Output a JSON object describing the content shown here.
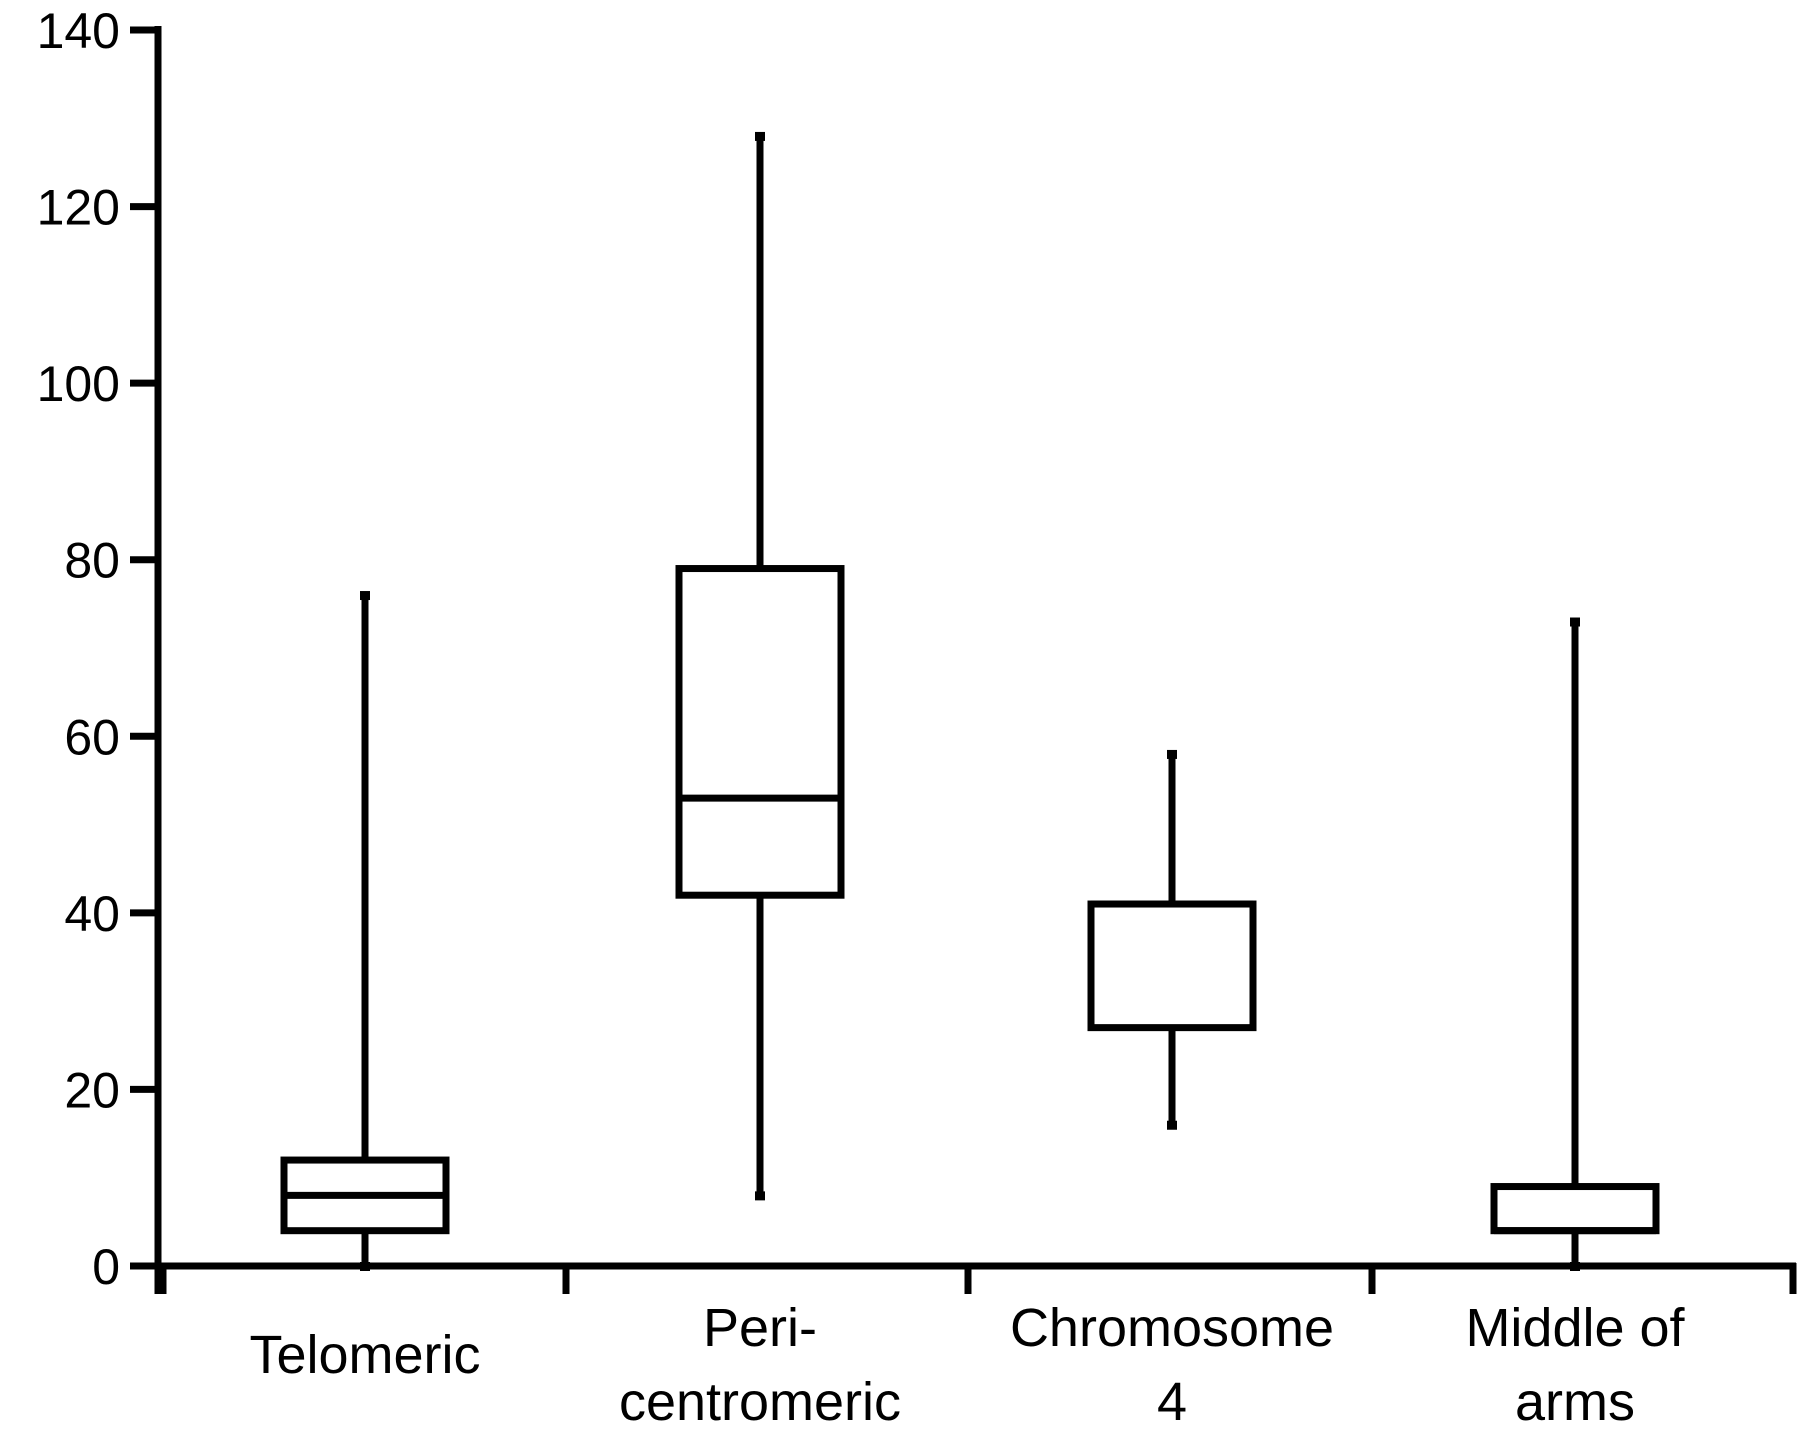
{
  "chart_data": {
    "type": "box",
    "title": "",
    "xlabel": "",
    "ylabel": "",
    "ylim": [
      0,
      140
    ],
    "y_ticks": [
      0,
      20,
      40,
      60,
      80,
      100,
      120,
      140
    ],
    "y_tick_labels": [
      "0",
      "20",
      "40",
      "60",
      "80",
      "100",
      "120",
      "140"
    ],
    "grid": false,
    "legend": "none",
    "categories": [
      {
        "label_lines": [
          "Telomeric"
        ],
        "whisker_low": 0,
        "q1": 4,
        "median": 8,
        "q3": 12,
        "whisker_high": 76
      },
      {
        "label_lines": [
          "Peri-",
          "centromeric"
        ],
        "whisker_low": 8,
        "q1": 42,
        "median": 53,
        "q3": 79,
        "whisker_high": 128
      },
      {
        "label_lines": [
          "Chromosome",
          "4"
        ],
        "whisker_low": 16,
        "q1": 27,
        "median": 41,
        "q3": 41,
        "whisker_high": 58
      },
      {
        "label_lines": [
          "Middle of",
          "arms"
        ],
        "whisker_low": 0,
        "q1": 4,
        "median": 4,
        "q3": 9,
        "whisker_high": 73
      }
    ],
    "colors": {
      "line": "#000000",
      "box_fill": "#ffffff"
    }
  }
}
